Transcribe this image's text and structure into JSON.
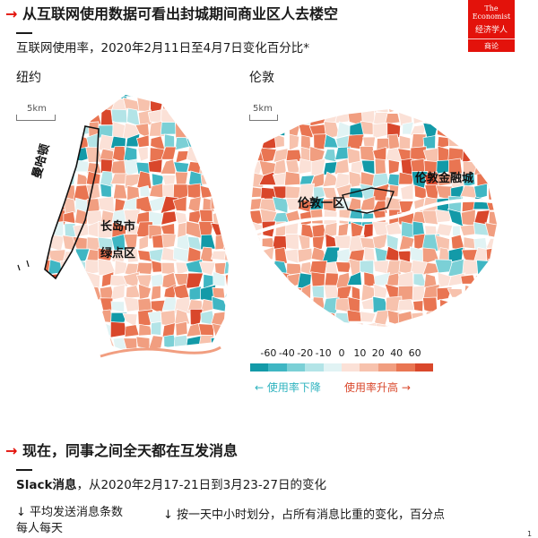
{
  "header": {
    "arrow": "→",
    "headline": "从互联网使用数据可看出封城期间商业区人去楼空",
    "subtitle": "互联网使用率，2020年2月11日至4月7日变化百分比*"
  },
  "logo": {
    "line1a": "The",
    "line1b": "Economist",
    "line2": "经济学人",
    "line3": "商论"
  },
  "maps": {
    "new_york": {
      "title": "纽约",
      "scale": "5km",
      "labels": {
        "manhattan": "曼哈顿",
        "lic": "长岛市",
        "greenpoint": "绿点区"
      }
    },
    "london": {
      "title": "伦敦",
      "scale": "5km",
      "labels": {
        "city": "伦敦一区",
        "canary": "伦敦金融城"
      }
    }
  },
  "chart_data": {
    "type": "heatmap",
    "title": "互联网使用率，2020年2月11日至4月7日变化百分比*",
    "legend_ticks": [
      "-60",
      "-40",
      "-20",
      "-10",
      "0",
      "10",
      "20",
      "40",
      "60"
    ],
    "legend_colors": [
      "#139aa8",
      "#3fb6c3",
      "#7bd0d6",
      "#b3e4e7",
      "#e1f3f4",
      "#fbe1d7",
      "#f7c2ad",
      "#f19e80",
      "#e97552",
      "#d9472b"
    ],
    "legend_captions": {
      "down": "← 使用率下降",
      "up": "使用率升高 →"
    }
  },
  "section2": {
    "arrow": "→",
    "headline": "现在，同事之间全天都在互发消息",
    "subtitle_bold": "Slack消息",
    "subtitle_rest": "，从2020年2月17-21日到3月23-27日的变化",
    "note1_line1": "↓ 平均发送消息条数",
    "note1_line2": "每人每天",
    "note2": "↓ 按一天中小时划分，占所有消息比重的变化，百分点"
  },
  "page_number": "1"
}
